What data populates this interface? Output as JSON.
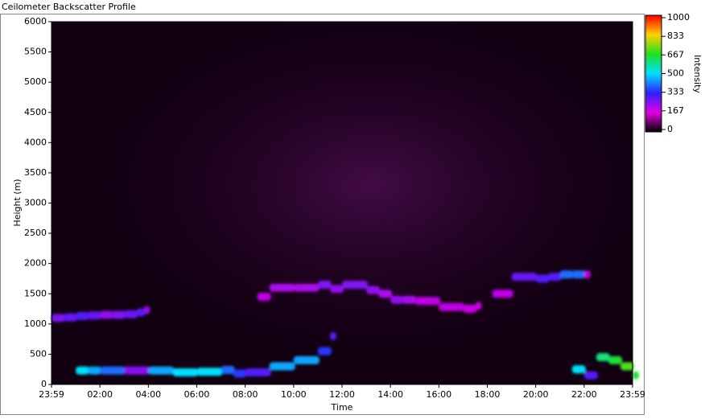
{
  "chart_data": {
    "type": "heatmap",
    "title": "Ceilometer Backscatter Profile",
    "x_label": "Time",
    "y_label": "Height (m)",
    "colorbar_label": "Intensity",
    "xlim": [
      0,
      24
    ],
    "xticks": [
      {
        "value": 0,
        "label": "23:59"
      },
      {
        "value": 2,
        "label": "02:00"
      },
      {
        "value": 4,
        "label": "04:00"
      },
      {
        "value": 6,
        "label": "06:00"
      },
      {
        "value": 8,
        "label": "08:00"
      },
      {
        "value": 10,
        "label": "10:00"
      },
      {
        "value": 12,
        "label": "12:00"
      },
      {
        "value": 14,
        "label": "14:00"
      },
      {
        "value": 16,
        "label": "16:00"
      },
      {
        "value": 18,
        "label": "18:00"
      },
      {
        "value": 20,
        "label": "20:00"
      },
      {
        "value": 22,
        "label": "22:00"
      },
      {
        "value": 24,
        "label": "23:59"
      }
    ],
    "ylim": [
      0,
      6000
    ],
    "yticks": [
      0,
      500,
      1000,
      1500,
      2000,
      2500,
      3000,
      3500,
      4000,
      4500,
      5000,
      5500,
      6000
    ],
    "clim": [
      0,
      1000
    ],
    "cticks": [
      0,
      167,
      333,
      500,
      667,
      833,
      1000
    ],
    "colorscale": [
      [
        0,
        "#000000"
      ],
      [
        167,
        "#e000e0"
      ],
      [
        333,
        "#3020ff"
      ],
      [
        500,
        "#00e0ff"
      ],
      [
        667,
        "#20e020"
      ],
      [
        833,
        "#ffd000"
      ],
      [
        1000,
        "#ff0000"
      ]
    ],
    "series": [
      {
        "x": [
          0,
          0.5,
          1,
          1.5,
          2,
          2.5,
          3,
          3.5,
          3.8
        ],
        "y": [
          1100,
          1110,
          1130,
          1140,
          1150,
          1150,
          1160,
          1190,
          1230
        ],
        "values": [
          260,
          280,
          300,
          280,
          240,
          260,
          280,
          300,
          240
        ]
      },
      {
        "x": [
          8.5,
          9,
          10,
          11,
          11.5,
          12,
          13,
          13.5,
          14,
          14.5,
          15,
          16,
          17,
          17.5
        ],
        "y": [
          1450,
          1600,
          1600,
          1650,
          1580,
          1650,
          1560,
          1500,
          1400,
          1400,
          1380,
          1280,
          1250,
          1300
        ],
        "values": [
          200,
          220,
          220,
          260,
          240,
          260,
          240,
          220,
          240,
          220,
          200,
          200,
          190,
          190
        ]
      },
      {
        "x": [
          18.2,
          19,
          20,
          20.5,
          21,
          21.5,
          22
        ],
        "y": [
          1500,
          1780,
          1750,
          1780,
          1820,
          1820,
          1820
        ],
        "values": [
          200,
          280,
          300,
          300,
          400,
          400,
          200
        ]
      },
      {
        "x": [
          1,
          1.5,
          2,
          3,
          4,
          5,
          6,
          7,
          7.5,
          8,
          9,
          10,
          11,
          11.5
        ],
        "y": [
          230,
          230,
          230,
          230,
          230,
          200,
          210,
          240,
          180,
          200,
          300,
          400,
          550,
          800
        ],
        "values": [
          500,
          450,
          400,
          250,
          450,
          500,
          500,
          400,
          350,
          300,
          450,
          450,
          350,
          300
        ]
      },
      {
        "x": [
          21.5,
          22,
          22.5,
          23,
          23.5,
          24
        ],
        "y": [
          250,
          150,
          450,
          400,
          300,
          150
        ],
        "values": [
          500,
          300,
          600,
          650,
          700,
          650
        ]
      }
    ]
  }
}
